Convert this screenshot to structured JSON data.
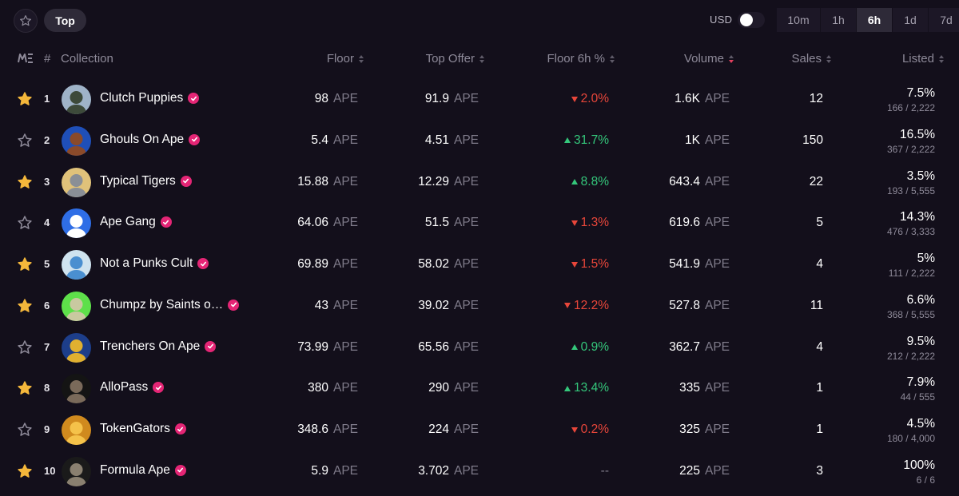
{
  "toolbar": {
    "filter_label": "Top",
    "currency_label": "USD",
    "timeframes": [
      "10m",
      "1h",
      "6h",
      "1d",
      "7d"
    ],
    "active_timeframe": "6h"
  },
  "columns": {
    "num": "#",
    "collection": "Collection",
    "floor": "Floor",
    "top_offer": "Top Offer",
    "floor_change": "Floor 6h %",
    "volume": "Volume",
    "sales": "Sales",
    "listed": "Listed"
  },
  "colors": {
    "background": "#130f1b",
    "up": "#34c77b",
    "down": "#e8463a",
    "star_filled": "#f4b73b",
    "verified": "#e42575"
  },
  "rows": [
    {
      "rank": "1",
      "starred": true,
      "name": "Clutch Puppies",
      "floor": "98",
      "floor_unit": "APE",
      "top_offer": "91.9",
      "offer_unit": "APE",
      "change": "2.0%",
      "direction": "down",
      "volume": "1.6K",
      "volume_unit": "APE",
      "sales": "12",
      "listed_pct": "7.5%",
      "listed_count": "166 / 2,222",
      "avatar_bg": "#9fb3c8",
      "avatar_fg": "#3d4a3a"
    },
    {
      "rank": "2",
      "starred": false,
      "name": "Ghouls On Ape",
      "floor": "5.4",
      "floor_unit": "APE",
      "top_offer": "4.51",
      "offer_unit": "APE",
      "change": "31.7%",
      "direction": "up",
      "volume": "1K",
      "volume_unit": "APE",
      "sales": "150",
      "listed_pct": "16.5%",
      "listed_count": "367 / 2,222",
      "avatar_bg": "#1f4fb8",
      "avatar_fg": "#8a4a2a"
    },
    {
      "rank": "3",
      "starred": true,
      "name": "Typical Tigers",
      "floor": "15.88",
      "floor_unit": "APE",
      "top_offer": "12.29",
      "offer_unit": "APE",
      "change": "8.8%",
      "direction": "up",
      "volume": "643.4",
      "volume_unit": "APE",
      "sales": "22",
      "listed_pct": "3.5%",
      "listed_count": "193 / 5,555",
      "avatar_bg": "#e0c27a",
      "avatar_fg": "#8a8f96"
    },
    {
      "rank": "4",
      "starred": false,
      "name": "Ape Gang",
      "floor": "64.06",
      "floor_unit": "APE",
      "top_offer": "51.5",
      "offer_unit": "APE",
      "change": "1.3%",
      "direction": "down",
      "volume": "619.6",
      "volume_unit": "APE",
      "sales": "5",
      "listed_pct": "14.3%",
      "listed_count": "476 / 3,333",
      "avatar_bg": "#2f6ee6",
      "avatar_fg": "#ffffff"
    },
    {
      "rank": "5",
      "starred": true,
      "name": "Not a Punks Cult",
      "floor": "69.89",
      "floor_unit": "APE",
      "top_offer": "58.02",
      "offer_unit": "APE",
      "change": "1.5%",
      "direction": "down",
      "volume": "541.9",
      "volume_unit": "APE",
      "sales": "4",
      "listed_pct": "5%",
      "listed_count": "111 / 2,222",
      "avatar_bg": "#cfe3ef",
      "avatar_fg": "#4a8fd0"
    },
    {
      "rank": "6",
      "starred": true,
      "name": "Chumpz by Saints o…",
      "floor": "43",
      "floor_unit": "APE",
      "top_offer": "39.02",
      "offer_unit": "APE",
      "change": "12.2%",
      "direction": "down",
      "volume": "527.8",
      "volume_unit": "APE",
      "sales": "11",
      "listed_pct": "6.6%",
      "listed_count": "368 / 5,555",
      "avatar_bg": "#5ee04a",
      "avatar_fg": "#c9c9a0"
    },
    {
      "rank": "7",
      "starred": false,
      "name": "Trenchers On Ape",
      "floor": "73.99",
      "floor_unit": "APE",
      "top_offer": "65.56",
      "offer_unit": "APE",
      "change": "0.9%",
      "direction": "up",
      "volume": "362.7",
      "volume_unit": "APE",
      "sales": "4",
      "listed_pct": "9.5%",
      "listed_count": "212 / 2,222",
      "avatar_bg": "#1d3e8a",
      "avatar_fg": "#e0b030"
    },
    {
      "rank": "8",
      "starred": true,
      "name": "AlloPass",
      "floor": "380",
      "floor_unit": "APE",
      "top_offer": "290",
      "offer_unit": "APE",
      "change": "13.4%",
      "direction": "up",
      "volume": "335",
      "volume_unit": "APE",
      "sales": "1",
      "listed_pct": "7.9%",
      "listed_count": "44 / 555",
      "avatar_bg": "#141414",
      "avatar_fg": "#7a6a5a"
    },
    {
      "rank": "9",
      "starred": false,
      "name": "TokenGators",
      "floor": "348.6",
      "floor_unit": "APE",
      "top_offer": "224",
      "offer_unit": "APE",
      "change": "0.2%",
      "direction": "down",
      "volume": "325",
      "volume_unit": "APE",
      "sales": "1",
      "listed_pct": "4.5%",
      "listed_count": "180 / 4,000",
      "avatar_bg": "#d08a1e",
      "avatar_fg": "#f5c24a"
    },
    {
      "rank": "10",
      "starred": true,
      "name": "Formula Ape",
      "floor": "5.9",
      "floor_unit": "APE",
      "top_offer": "3.702",
      "offer_unit": "APE",
      "change": "--",
      "direction": "flat",
      "volume": "225",
      "volume_unit": "APE",
      "sales": "3",
      "listed_pct": "100%",
      "listed_count": "6 / 6",
      "avatar_bg": "#1a1a1a",
      "avatar_fg": "#8a8070"
    }
  ]
}
